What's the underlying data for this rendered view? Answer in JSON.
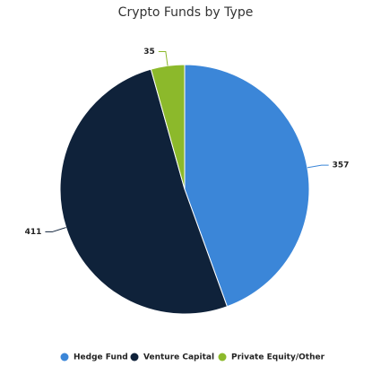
{
  "chart_data": {
    "type": "pie",
    "title": "Crypto Funds by Type",
    "categories": [
      "Hedge Fund",
      "Venture Capital",
      "Private Equity/Other"
    ],
    "values": [
      357,
      411,
      35
    ],
    "colors": [
      "#3b86d8",
      "#0f223a",
      "#8cb92b"
    ],
    "legend": "bottom"
  }
}
